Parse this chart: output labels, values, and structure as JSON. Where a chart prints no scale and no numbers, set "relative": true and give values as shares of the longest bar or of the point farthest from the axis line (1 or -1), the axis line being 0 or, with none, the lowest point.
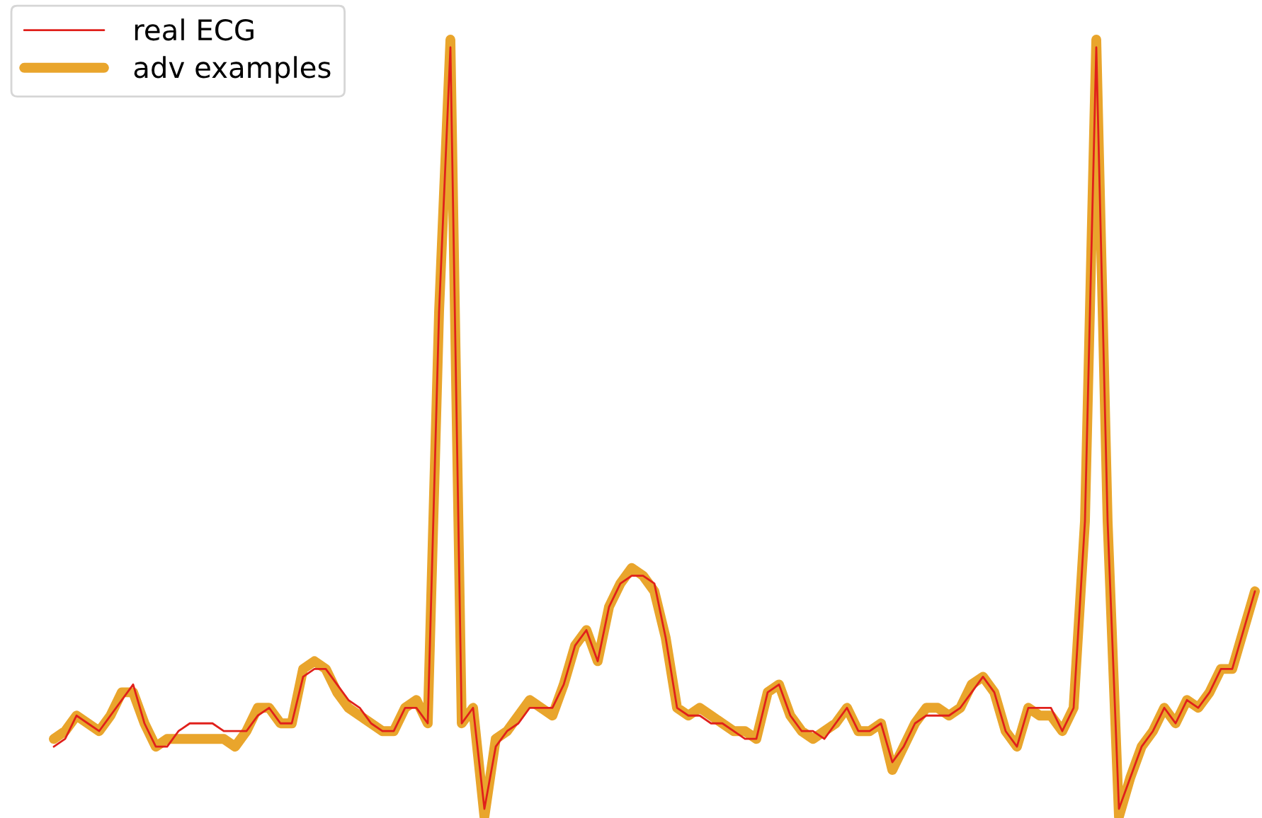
{
  "chart_data": {
    "type": "line",
    "relative": true,
    "legend": "top left",
    "marker": "none",
    "line_style": "solid",
    "categories": [
      null,
      null,
      null,
      null,
      null,
      null,
      null,
      null,
      null,
      null,
      null,
      null,
      null,
      null,
      null,
      null,
      null,
      null,
      null,
      null,
      null,
      null,
      null,
      null,
      null,
      null,
      null,
      null,
      null,
      null,
      null,
      null,
      null,
      null,
      null,
      null,
      null,
      null,
      null,
      null,
      null,
      null,
      null,
      null,
      null,
      null,
      null,
      null,
      null,
      null,
      null,
      null,
      null,
      null,
      null,
      null,
      null,
      null,
      null,
      null,
      null,
      null,
      null,
      null,
      null,
      null,
      null,
      null,
      null,
      null,
      null,
      null,
      null,
      null,
      null,
      null,
      null,
      null,
      null,
      null,
      null,
      null,
      null,
      null,
      null,
      null,
      null,
      null,
      null,
      null,
      null,
      null,
      null,
      null,
      null,
      null,
      null,
      null,
      null,
      null,
      null,
      null,
      null,
      null,
      null,
      null,
      null
    ],
    "series": [
      {
        "name": "real ECG",
        "color": "#e0201b",
        "values": [
          0.09,
          0.1,
          0.13,
          0.12,
          0.11,
          0.13,
          0.15,
          0.17,
          0.12,
          0.09,
          0.09,
          0.11,
          0.12,
          0.12,
          0.12,
          0.11,
          0.11,
          0.11,
          0.13,
          0.14,
          0.12,
          0.12,
          0.18,
          0.19,
          0.19,
          0.17,
          0.15,
          0.14,
          0.12,
          0.11,
          0.11,
          0.14,
          0.14,
          0.12,
          0.65,
          0.99,
          0.12,
          0.14,
          0.01,
          0.09,
          0.11,
          0.12,
          0.14,
          0.14,
          0.14,
          0.17,
          0.22,
          0.24,
          0.2,
          0.27,
          0.3,
          0.31,
          0.31,
          0.3,
          0.23,
          0.14,
          0.13,
          0.13,
          0.12,
          0.12,
          0.11,
          0.1,
          0.1,
          0.16,
          0.17,
          0.13,
          0.11,
          0.11,
          0.1,
          0.12,
          0.14,
          0.11,
          0.11,
          0.12,
          0.07,
          0.09,
          0.12,
          0.13,
          0.13,
          0.13,
          0.14,
          0.16,
          0.18,
          0.16,
          0.11,
          0.09,
          0.14,
          0.14,
          0.14,
          0.11,
          0.14,
          0.38,
          0.99,
          0.38,
          0.01,
          0.05,
          0.09,
          0.11,
          0.14,
          0.12,
          0.15,
          0.14,
          0.16,
          0.19,
          0.19,
          0.24,
          0.29
        ]
      },
      {
        "name": "adv examples",
        "color": "#e9a52c",
        "values": [
          0.1,
          0.11,
          0.13,
          0.12,
          0.11,
          0.13,
          0.16,
          0.16,
          0.12,
          0.09,
          0.1,
          0.1,
          0.1,
          0.1,
          0.1,
          0.1,
          0.09,
          0.11,
          0.14,
          0.14,
          0.12,
          0.12,
          0.19,
          0.2,
          0.19,
          0.16,
          0.14,
          0.13,
          0.12,
          0.11,
          0.11,
          0.14,
          0.15,
          0.12,
          0.65,
          1.0,
          0.12,
          0.14,
          0.0,
          0.1,
          0.11,
          0.13,
          0.15,
          0.14,
          0.13,
          0.17,
          0.22,
          0.24,
          0.2,
          0.27,
          0.3,
          0.32,
          0.31,
          0.29,
          0.23,
          0.14,
          0.13,
          0.14,
          0.13,
          0.12,
          0.11,
          0.11,
          0.1,
          0.16,
          0.17,
          0.13,
          0.11,
          0.1,
          0.11,
          0.12,
          0.14,
          0.11,
          0.11,
          0.12,
          0.06,
          0.09,
          0.12,
          0.14,
          0.14,
          0.13,
          0.14,
          0.17,
          0.18,
          0.16,
          0.11,
          0.09,
          0.14,
          0.13,
          0.13,
          0.11,
          0.14,
          0.38,
          1.0,
          0.38,
          0.0,
          0.05,
          0.09,
          0.11,
          0.14,
          0.12,
          0.15,
          0.14,
          0.16,
          0.19,
          0.19,
          0.24,
          0.29
        ]
      }
    ]
  }
}
